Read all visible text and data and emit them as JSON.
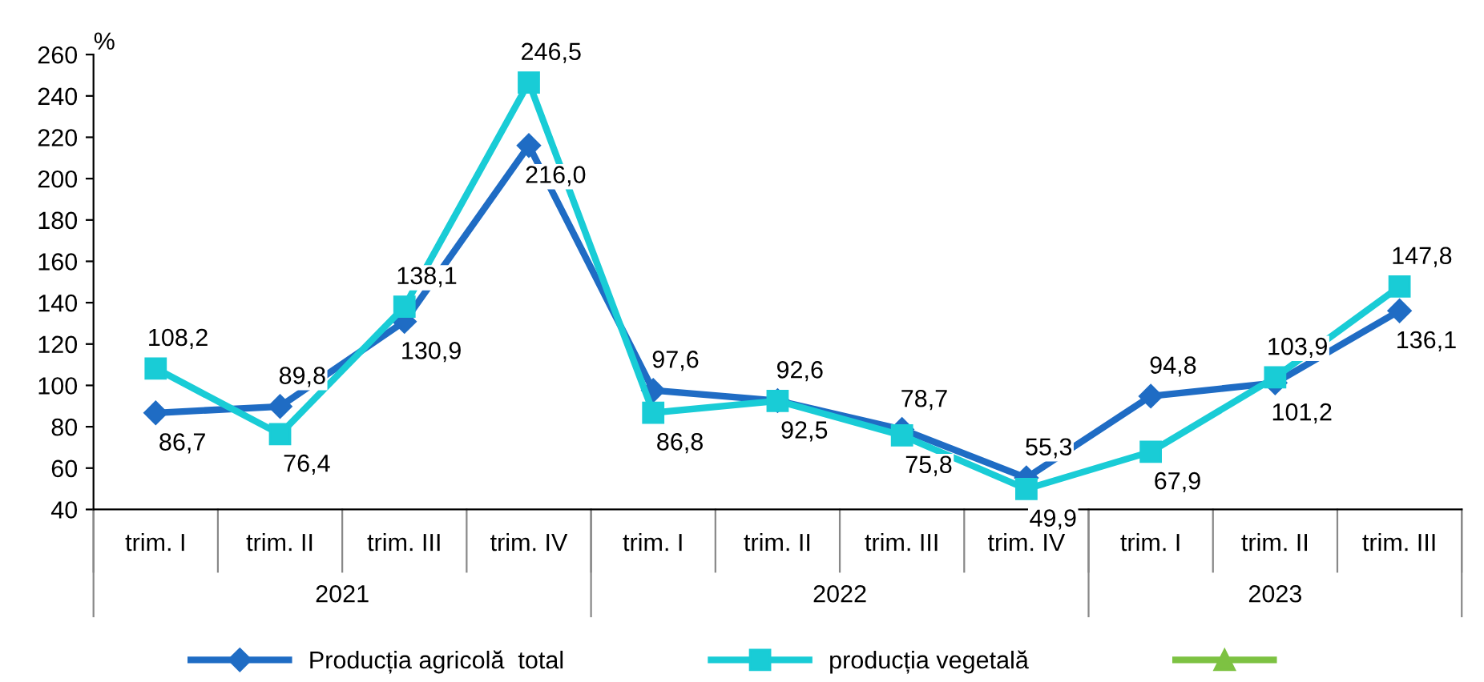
{
  "chart_data": {
    "type": "line",
    "ylabel": "%",
    "categories": [
      "trim. I",
      "trim. II",
      "trim. III",
      "trim. IV",
      "trim. I",
      "trim. II",
      "trim. III",
      "trim. IV",
      "trim. I",
      "trim. II",
      "trim. III"
    ],
    "annotations": [
      "2021",
      "2022",
      "2023"
    ],
    "series": [
      {
        "name": "Producția agricolă  total",
        "color": "#1f6cc4",
        "marker": "diamond",
        "values": [
          86.7,
          89.8,
          130.9,
          216.0,
          97.6,
          92.6,
          78.7,
          55.3,
          94.8,
          101.2,
          136.1
        ],
        "value_labels": [
          "86,7",
          "89,8",
          "130,9",
          "216,0",
          "97,6",
          "92,6",
          "78,7",
          "55,3",
          "94,8",
          "101,2",
          "136,1"
        ]
      },
      {
        "name": "producția vegetală",
        "color": "#19ccd6",
        "marker": "square",
        "values": [
          108.2,
          76.4,
          138.1,
          246.5,
          86.8,
          92.5,
          75.8,
          49.9,
          67.9,
          103.9,
          147.8
        ],
        "value_labels": [
          "108,2",
          "76,4",
          "138,1",
          "246,5",
          "86,8",
          "92,5",
          "75,8",
          "49,9",
          "67,9",
          "103,9",
          "147,8"
        ]
      },
      {
        "color": "#7dc242",
        "marker": "triangle",
        "values": [
          null,
          null,
          null,
          null,
          null,
          null,
          null,
          null,
          null,
          null,
          null
        ]
      }
    ],
    "ylim": [
      40,
      260
    ],
    "yticks": [
      40,
      60,
      80,
      100,
      120,
      140,
      160,
      180,
      200,
      220,
      240,
      260
    ],
    "grid": false,
    "legend": "bottom",
    "line_style": "solid"
  }
}
